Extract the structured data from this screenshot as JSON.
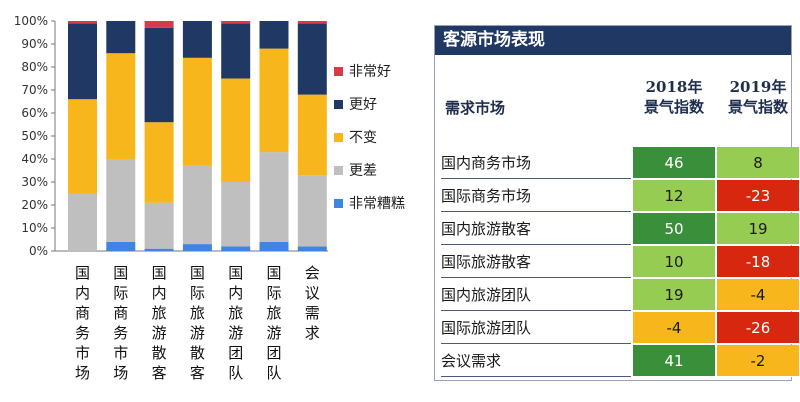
{
  "chart_data": [
    {
      "type": "bar",
      "stacked": true,
      "categories": [
        "国内商务市场",
        "国际商务市场",
        "国内旅游散客",
        "国际旅游散客",
        "国内旅游团队",
        "国际旅游团队",
        "会议需求"
      ],
      "series": [
        {
          "name": "非常糟糕",
          "color": "#3d85e0",
          "values": [
            0,
            4,
            1,
            3,
            2,
            4,
            2
          ]
        },
        {
          "name": "更差",
          "color": "#bfbfbf",
          "values": [
            25,
            36,
            20,
            34,
            28,
            39,
            31
          ]
        },
        {
          "name": "不变",
          "color": "#f7b61b",
          "values": [
            41,
            46,
            35,
            47,
            45,
            45,
            35
          ]
        },
        {
          "name": "更好",
          "color": "#1f3864",
          "values": [
            33,
            14,
            41,
            16,
            24,
            12,
            31
          ]
        },
        {
          "name": "非常好",
          "color": "#d93a49",
          "values": [
            1,
            0,
            3,
            0,
            1,
            0,
            1
          ]
        }
      ],
      "legend_order": [
        "非常好",
        "更好",
        "不变",
        "更差",
        "非常糟糕"
      ],
      "legend_position": "right",
      "yticks": [
        "0%",
        "10%",
        "20%",
        "30%",
        "40%",
        "50%",
        "60%",
        "70%",
        "80%",
        "90%",
        "100%"
      ],
      "ylim": [
        0,
        100
      ],
      "grid": false
    },
    {
      "type": "table",
      "title": "客源市场表现",
      "row_header": "需求市场",
      "columns": [
        "2018年\n景气指数",
        "2019年\n景气指数"
      ],
      "column_lines": [
        [
          "2018年",
          "景气指数"
        ],
        [
          "2019年",
          "景气指数"
        ]
      ],
      "rows": [
        {
          "name": "国内商务市场",
          "v2018": 46,
          "v2019": 8
        },
        {
          "name": "国际商务市场",
          "v2018": 12,
          "v2019": -23
        },
        {
          "name": "国内旅游散客",
          "v2018": 50,
          "v2019": 19
        },
        {
          "name": "国际旅游散客",
          "v2018": 10,
          "v2019": -18
        },
        {
          "name": "国内旅游团队",
          "v2018": 19,
          "v2019": -4
        },
        {
          "name": "国际旅游团队",
          "v2018": -4,
          "v2019": -26
        },
        {
          "name": "会议需求",
          "v2018": 41,
          "v2019": -2
        }
      ]
    }
  ]
}
